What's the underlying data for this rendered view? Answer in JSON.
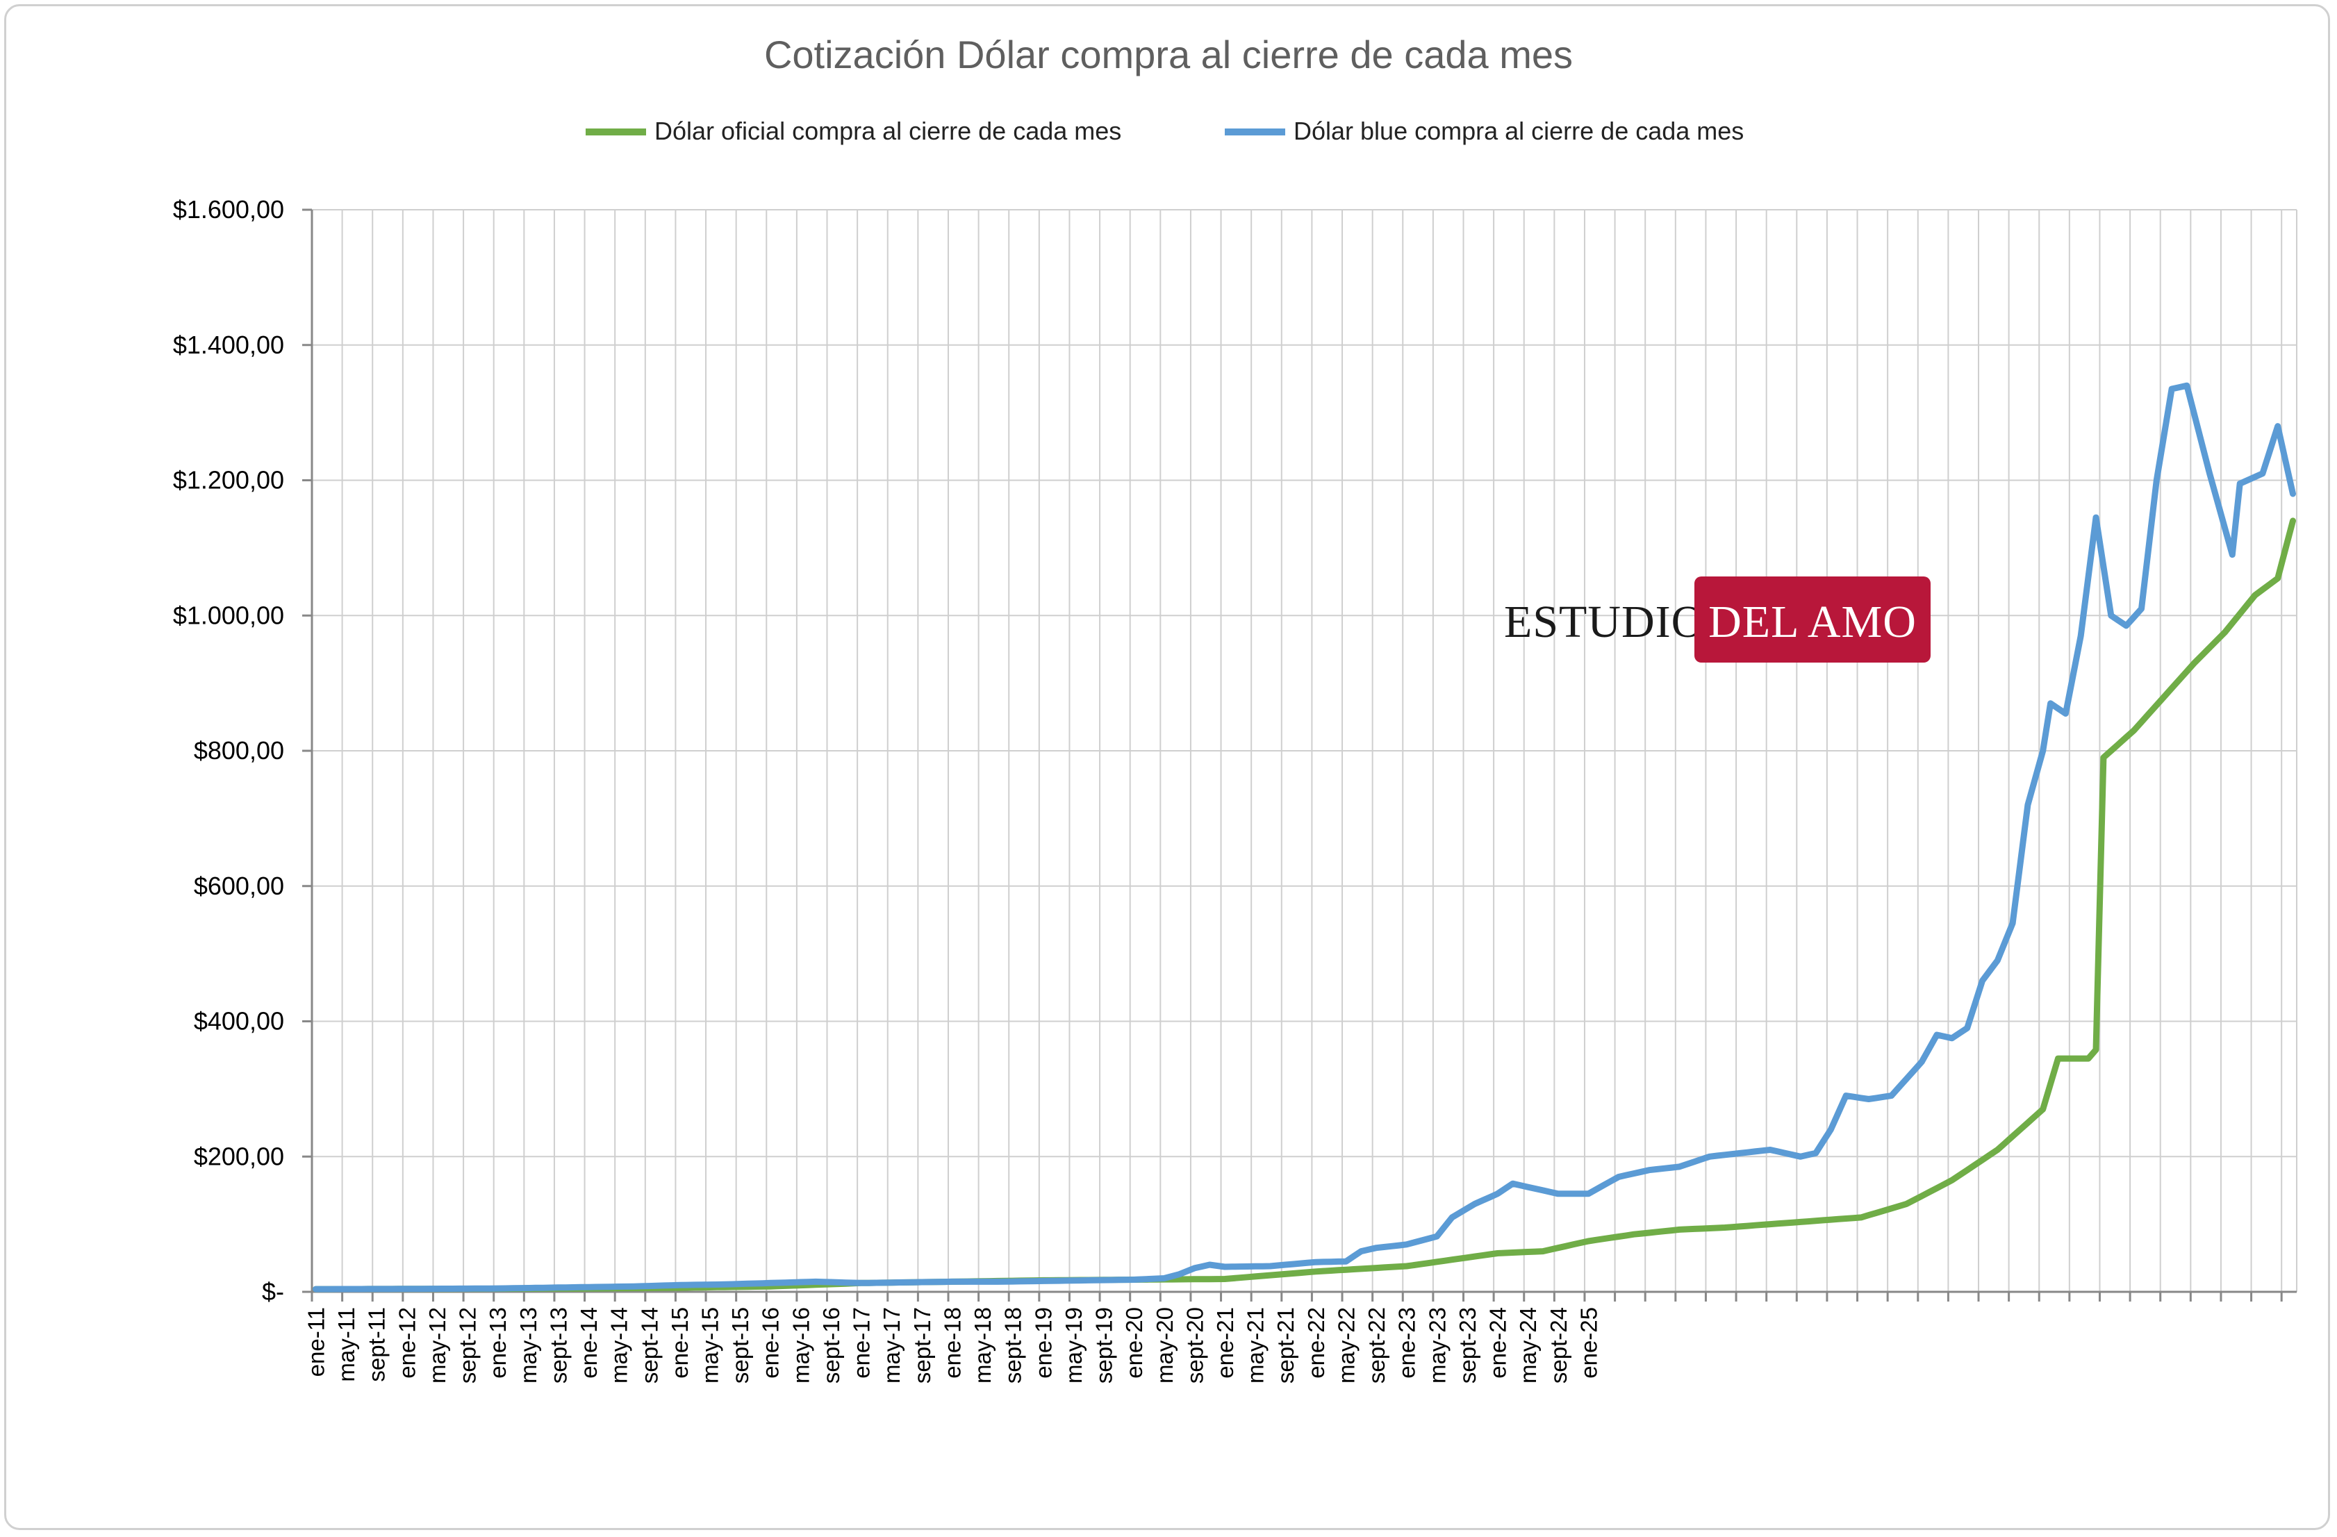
{
  "chart_data": {
    "type": "line",
    "title": "Cotización Dólar compra al cierre de cada mes",
    "ylim": [
      0,
      1600
    ],
    "yticks": [
      {
        "value": 0,
        "label": "$-"
      },
      {
        "value": 200,
        "label": "$200,00"
      },
      {
        "value": 400,
        "label": "$400,00"
      },
      {
        "value": 600,
        "label": "$600,00"
      },
      {
        "value": 800,
        "label": "$800,00"
      },
      {
        "value": 1000,
        "label": "$1.000,00"
      },
      {
        "value": 1200,
        "label": "$1.200,00"
      },
      {
        "value": 1400,
        "label": "$1.400,00"
      },
      {
        "value": 1600,
        "label": "$1.600,00"
      }
    ],
    "x_tick_labels": [
      "ene-11",
      "may-11",
      "sept-11",
      "ene-12",
      "may-12",
      "sept-12",
      "ene-13",
      "may-13",
      "sept-13",
      "ene-14",
      "may-14",
      "sept-14",
      "ene-15",
      "may-15",
      "sept-15",
      "ene-16",
      "may-16",
      "sept-16",
      "ene-17",
      "may-17",
      "sept-17",
      "ene-18",
      "may-18",
      "sept-18",
      "ene-19",
      "may-19",
      "sept-19",
      "ene-20",
      "may-20",
      "sept-20",
      "ene-21",
      "may-21",
      "sept-21",
      "ene-22",
      "may-22",
      "sept-22",
      "ene-23",
      "may-23",
      "sept-23",
      "ene-24",
      "may-24",
      "sept-24",
      "ene-25"
    ],
    "x_start": "2011-01",
    "x_end": "2025-07",
    "grid": true,
    "legend_position": "top",
    "series": [
      {
        "name": "Dólar oficial compra al cierre de cada mes",
        "color": "#70ad47",
        "points": [
          [
            0,
            4
          ],
          [
            12,
            4.3
          ],
          [
            24,
            4.6
          ],
          [
            36,
            5
          ],
          [
            48,
            6
          ],
          [
            60,
            8
          ],
          [
            72,
            13
          ],
          [
            84,
            15
          ],
          [
            96,
            17
          ],
          [
            108,
            18
          ],
          [
            120,
            19
          ],
          [
            132,
            30
          ],
          [
            144,
            38
          ],
          [
            156,
            57
          ],
          [
            162,
            60
          ],
          [
            168,
            75
          ],
          [
            174,
            85
          ],
          [
            180,
            92
          ],
          [
            186,
            95
          ],
          [
            192,
            100
          ],
          [
            198,
            105
          ],
          [
            204,
            110
          ],
          [
            210,
            130
          ],
          [
            216,
            165
          ],
          [
            222,
            210
          ],
          [
            228,
            270
          ],
          [
            230,
            345
          ],
          [
            232,
            345
          ],
          [
            234,
            345
          ],
          [
            235,
            358
          ],
          [
            236,
            790
          ],
          [
            240,
            830
          ],
          [
            244,
            880
          ],
          [
            248,
            930
          ],
          [
            252,
            975
          ],
          [
            256,
            1030
          ],
          [
            259,
            1055
          ],
          [
            261,
            1140
          ]
        ]
      },
      {
        "name": "Dólar blue compra al cierre de cada mes",
        "color": "#5b9bd5",
        "points": [
          [
            0,
            4
          ],
          [
            12,
            4.3
          ],
          [
            24,
            5
          ],
          [
            30,
            6
          ],
          [
            36,
            7
          ],
          [
            42,
            8
          ],
          [
            48,
            10
          ],
          [
            54,
            11
          ],
          [
            60,
            13
          ],
          [
            66,
            15
          ],
          [
            72,
            13
          ],
          [
            78,
            14
          ],
          [
            84,
            15
          ],
          [
            90,
            15
          ],
          [
            96,
            16
          ],
          [
            102,
            17
          ],
          [
            108,
            18
          ],
          [
            112,
            20
          ],
          [
            114,
            26
          ],
          [
            116,
            35
          ],
          [
            118,
            40
          ],
          [
            120,
            37
          ],
          [
            126,
            38
          ],
          [
            132,
            44
          ],
          [
            136,
            45
          ],
          [
            138,
            60
          ],
          [
            140,
            65
          ],
          [
            144,
            70
          ],
          [
            148,
            82
          ],
          [
            150,
            110
          ],
          [
            153,
            130
          ],
          [
            156,
            145
          ],
          [
            158,
            160
          ],
          [
            160,
            155
          ],
          [
            164,
            145
          ],
          [
            168,
            145
          ],
          [
            172,
            170
          ],
          [
            176,
            180
          ],
          [
            180,
            185
          ],
          [
            184,
            200
          ],
          [
            188,
            205
          ],
          [
            192,
            210
          ],
          [
            196,
            200
          ],
          [
            198,
            205
          ],
          [
            200,
            240
          ],
          [
            202,
            290
          ],
          [
            205,
            285
          ],
          [
            208,
            290
          ],
          [
            212,
            340
          ],
          [
            214,
            380
          ],
          [
            216,
            375
          ],
          [
            218,
            390
          ],
          [
            220,
            460
          ],
          [
            222,
            490
          ],
          [
            224,
            545
          ],
          [
            226,
            720
          ],
          [
            228,
            800
          ],
          [
            229,
            870
          ],
          [
            231,
            855
          ],
          [
            233,
            970
          ],
          [
            235,
            1145
          ],
          [
            237,
            1000
          ],
          [
            239,
            985
          ],
          [
            241,
            1010
          ],
          [
            243,
            1200
          ],
          [
            245,
            1335
          ],
          [
            247,
            1340
          ],
          [
            250,
            1210
          ],
          [
            253,
            1090
          ],
          [
            254,
            1195
          ],
          [
            257,
            1210
          ],
          [
            259,
            1280
          ],
          [
            261,
            1180
          ]
        ]
      }
    ]
  },
  "watermark": {
    "left_text": "ESTUDIO",
    "right_text": "DEL AMO",
    "box_color": "#b8173a"
  }
}
